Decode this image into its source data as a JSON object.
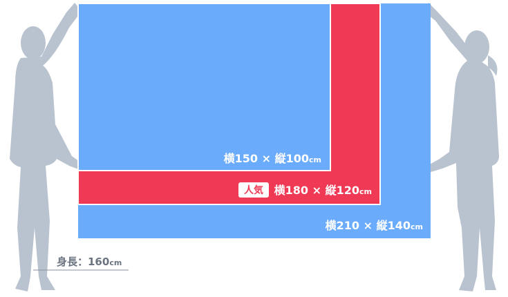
{
  "sizes": [
    {
      "text": "横150 × 縦100",
      "unit": "cm"
    },
    {
      "badge": "人気",
      "text": "横180 × 縦120",
      "unit": "cm"
    },
    {
      "text": "横210 × 縦140",
      "unit": "cm"
    }
  ],
  "person": {
    "label": "身長：160",
    "unit": "cm"
  }
}
